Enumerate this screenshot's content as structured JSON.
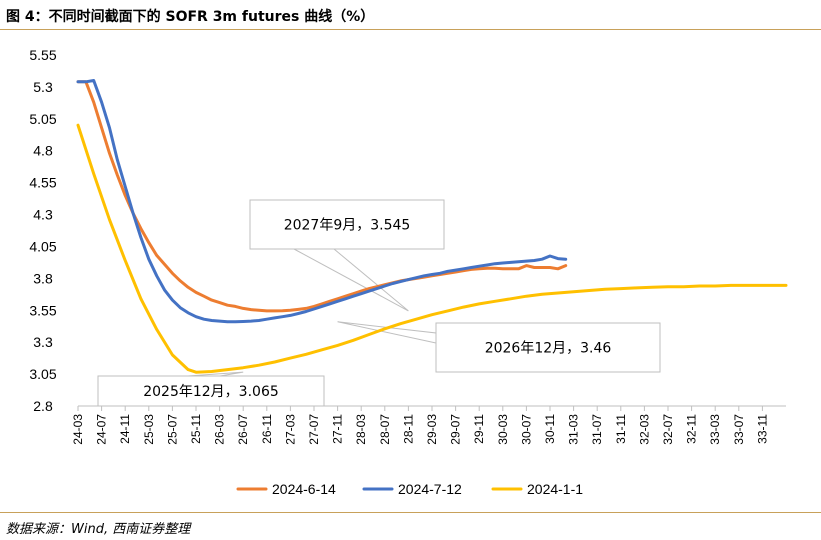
{
  "figure": {
    "title": "图 4：不同时间截面下的 SOFR 3m futures 曲线（%）",
    "source": "数据来源：Wind, 西南证券整理"
  },
  "chart_data": {
    "type": "line",
    "ylim": [
      2.8,
      5.55
    ],
    "yticks": [
      2.8,
      3.05,
      3.3,
      3.55,
      3.8,
      4.05,
      4.3,
      4.55,
      4.8,
      5.05,
      5.3,
      5.55
    ],
    "ytick_labels": [
      "2.8",
      "3.05",
      "3.3",
      "3.55",
      "3.8",
      "4.05",
      "4.3",
      "4.55",
      "4.8",
      "5.05",
      "5.3",
      "5.55"
    ],
    "xticks": [
      "24-03",
      "24-07",
      "24-11",
      "25-03",
      "25-07",
      "25-11",
      "26-03",
      "26-07",
      "26-11",
      "27-03",
      "27-07",
      "27-11",
      "28-03",
      "28-07",
      "28-11",
      "29-03",
      "29-07",
      "29-11",
      "30-03",
      "30-07",
      "30-11",
      "31-03",
      "31-07",
      "31-11",
      "32-03",
      "32-07",
      "32-11",
      "33-03",
      "33-07",
      "33-11"
    ],
    "grid": false,
    "legend_position": "bottom",
    "series": [
      {
        "name": "2024-6-14",
        "color": "#ed7d31",
        "points": [
          [
            0,
            5.34
          ],
          [
            1,
            5.34
          ],
          [
            2,
            5.18
          ],
          [
            3,
            4.98
          ],
          [
            4,
            4.78
          ],
          [
            5,
            4.61
          ],
          [
            6,
            4.45
          ],
          [
            7,
            4.31
          ],
          [
            8,
            4.19
          ],
          [
            9,
            4.08
          ],
          [
            10,
            3.98
          ],
          [
            11,
            3.91
          ],
          [
            12,
            3.84
          ],
          [
            13,
            3.78
          ],
          [
            14,
            3.73
          ],
          [
            15,
            3.69
          ],
          [
            16,
            3.66
          ],
          [
            17,
            3.63
          ],
          [
            18,
            3.61
          ],
          [
            19,
            3.59
          ],
          [
            20,
            3.58
          ],
          [
            21,
            3.565
          ],
          [
            22,
            3.555
          ],
          [
            23,
            3.55
          ],
          [
            24,
            3.545
          ],
          [
            25,
            3.545
          ],
          [
            26,
            3.547
          ],
          [
            27,
            3.55
          ],
          [
            28,
            3.557
          ],
          [
            29,
            3.565
          ],
          [
            30,
            3.58
          ],
          [
            31,
            3.6
          ],
          [
            32,
            3.62
          ],
          [
            33,
            3.64
          ],
          [
            34,
            3.66
          ],
          [
            35,
            3.68
          ],
          [
            36,
            3.7
          ],
          [
            37,
            3.72
          ],
          [
            38,
            3.735
          ],
          [
            39,
            3.75
          ],
          [
            40,
            3.765
          ],
          [
            41,
            3.78
          ],
          [
            42,
            3.79
          ],
          [
            43,
            3.8
          ],
          [
            44,
            3.81
          ],
          [
            45,
            3.82
          ],
          [
            46,
            3.83
          ],
          [
            47,
            3.84
          ],
          [
            48,
            3.85
          ],
          [
            49,
            3.86
          ],
          [
            50,
            3.87
          ],
          [
            51,
            3.875
          ],
          [
            52,
            3.88
          ],
          [
            53,
            3.88
          ],
          [
            54,
            3.875
          ],
          [
            55,
            3.875
          ],
          [
            56,
            3.875
          ],
          [
            57,
            3.9
          ],
          [
            58,
            3.885
          ],
          [
            59,
            3.885
          ],
          [
            60,
            3.885
          ],
          [
            61,
            3.875
          ],
          [
            62,
            3.9
          ]
        ]
      },
      {
        "name": "2024-7-12",
        "color": "#4472c4",
        "points": [
          [
            0,
            5.34
          ],
          [
            1,
            5.34
          ],
          [
            2,
            5.35
          ],
          [
            3,
            5.18
          ],
          [
            4,
            4.98
          ],
          [
            5,
            4.73
          ],
          [
            6,
            4.52
          ],
          [
            7,
            4.31
          ],
          [
            8,
            4.12
          ],
          [
            9,
            3.95
          ],
          [
            10,
            3.82
          ],
          [
            11,
            3.71
          ],
          [
            12,
            3.63
          ],
          [
            13,
            3.57
          ],
          [
            14,
            3.53
          ],
          [
            15,
            3.5
          ],
          [
            16,
            3.48
          ],
          [
            17,
            3.47
          ],
          [
            18,
            3.465
          ],
          [
            19,
            3.46
          ],
          [
            20,
            3.46
          ],
          [
            21,
            3.462
          ],
          [
            22,
            3.465
          ],
          [
            23,
            3.47
          ],
          [
            24,
            3.48
          ],
          [
            25,
            3.49
          ],
          [
            26,
            3.5
          ],
          [
            27,
            3.51
          ],
          [
            28,
            3.525
          ],
          [
            29,
            3.54
          ],
          [
            30,
            3.56
          ],
          [
            31,
            3.58
          ],
          [
            32,
            3.6
          ],
          [
            33,
            3.62
          ],
          [
            34,
            3.64
          ],
          [
            35,
            3.66
          ],
          [
            36,
            3.68
          ],
          [
            37,
            3.7
          ],
          [
            38,
            3.72
          ],
          [
            39,
            3.74
          ],
          [
            40,
            3.76
          ],
          [
            41,
            3.775
          ],
          [
            42,
            3.79
          ],
          [
            43,
            3.805
          ],
          [
            44,
            3.82
          ],
          [
            45,
            3.83
          ],
          [
            46,
            3.84
          ],
          [
            47,
            3.855
          ],
          [
            48,
            3.865
          ],
          [
            49,
            3.875
          ],
          [
            50,
            3.885
          ],
          [
            51,
            3.895
          ],
          [
            52,
            3.905
          ],
          [
            53,
            3.915
          ],
          [
            54,
            3.92
          ],
          [
            55,
            3.925
          ],
          [
            56,
            3.93
          ],
          [
            57,
            3.935
          ],
          [
            58,
            3.94
          ],
          [
            59,
            3.95
          ],
          [
            60,
            3.975
          ],
          [
            61,
            3.955
          ],
          [
            62,
            3.95
          ]
        ]
      },
      {
        "name": "2024-1-1",
        "color": "#ffc000",
        "points": [
          [
            0,
            5.0
          ],
          [
            2,
            4.62
          ],
          [
            4,
            4.26
          ],
          [
            6,
            3.94
          ],
          [
            8,
            3.64
          ],
          [
            10,
            3.4
          ],
          [
            12,
            3.2
          ],
          [
            14,
            3.085
          ],
          [
            15,
            3.065
          ],
          [
            17,
            3.07
          ],
          [
            19,
            3.085
          ],
          [
            21,
            3.1
          ],
          [
            23,
            3.12
          ],
          [
            25,
            3.145
          ],
          [
            27,
            3.175
          ],
          [
            29,
            3.205
          ],
          [
            31,
            3.24
          ],
          [
            33,
            3.275
          ],
          [
            35,
            3.315
          ],
          [
            37,
            3.36
          ],
          [
            39,
            3.405
          ],
          [
            41,
            3.445
          ],
          [
            43,
            3.48
          ],
          [
            45,
            3.515
          ],
          [
            47,
            3.545
          ],
          [
            49,
            3.575
          ],
          [
            51,
            3.6
          ],
          [
            53,
            3.62
          ],
          [
            55,
            3.64
          ],
          [
            57,
            3.66
          ],
          [
            59,
            3.675
          ],
          [
            61,
            3.685
          ],
          [
            63,
            3.695
          ],
          [
            65,
            3.705
          ],
          [
            67,
            3.715
          ],
          [
            69,
            3.72
          ],
          [
            71,
            3.725
          ],
          [
            73,
            3.73
          ],
          [
            75,
            3.735
          ],
          [
            77,
            3.735
          ],
          [
            79,
            3.74
          ],
          [
            81,
            3.74
          ],
          [
            83,
            3.745
          ],
          [
            85,
            3.745
          ],
          [
            87,
            3.745
          ],
          [
            89,
            3.745
          ],
          [
            90,
            3.745
          ]
        ]
      }
    ],
    "annotations": [
      {
        "text": "2027年9月，3.545",
        "x_month_index": 42,
        "y": 3.545
      },
      {
        "text": "2026年12月，3.46",
        "x_month_index": 33,
        "y": 3.46
      },
      {
        "text": "2025年12月，3.065",
        "x_month_index": 21,
        "y": 3.065
      }
    ]
  }
}
